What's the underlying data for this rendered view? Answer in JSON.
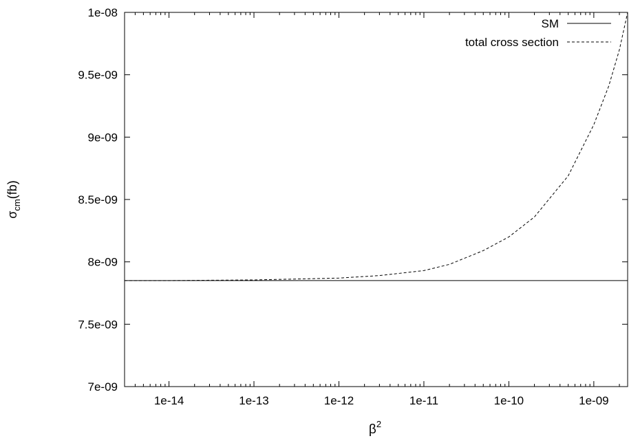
{
  "chart_data": {
    "type": "line",
    "title": "",
    "xlabel": "β",
    "xlabel_sup": "2",
    "ylabel": "σ",
    "ylabel_sub": "cm",
    "ylabel_unit": "(fb)",
    "x_scale": "log",
    "xlim": [
      3e-15,
      2.5e-09
    ],
    "ylim": [
      7e-09,
      1e-08
    ],
    "grid": false,
    "legend_position": "top-right",
    "x_ticks": [
      {
        "value": 1e-14,
        "label": "1e-14"
      },
      {
        "value": 1e-13,
        "label": "1e-13"
      },
      {
        "value": 1e-12,
        "label": "1e-12"
      },
      {
        "value": 1e-11,
        "label": "1e-11"
      },
      {
        "value": 1e-10,
        "label": "1e-10"
      },
      {
        "value": 1e-09,
        "label": "1e-09"
      }
    ],
    "y_ticks": [
      {
        "value": 7e-09,
        "label": "7e-09"
      },
      {
        "value": 7.5e-09,
        "label": "7.5e-09"
      },
      {
        "value": 8e-09,
        "label": "8e-09"
      },
      {
        "value": 8.5e-09,
        "label": "8.5e-09"
      },
      {
        "value": 9e-09,
        "label": "9e-09"
      },
      {
        "value": 9.5e-09,
        "label": "9.5e-09"
      },
      {
        "value": 1e-08,
        "label": "1e-08"
      }
    ],
    "series": [
      {
        "name": "SM",
        "style": "solid",
        "color": "#000000",
        "x": [
          3e-15,
          2.5e-09
        ],
        "y": [
          7.85e-09,
          7.85e-09
        ]
      },
      {
        "name": "total cross section",
        "style": "dashed",
        "color": "#000000",
        "x": [
          3e-15,
          1e-14,
          1e-13,
          1e-12,
          3e-12,
          1e-11,
          2e-11,
          5e-11,
          1e-10,
          2e-10,
          5e-10,
          1e-09,
          1.5e-09,
          2e-09,
          2.5e-09
        ],
        "y": [
          7.85e-09,
          7.85e-09,
          7.855e-09,
          7.87e-09,
          7.89e-09,
          7.93e-09,
          7.98e-09,
          8.09e-09,
          8.2e-09,
          8.36e-09,
          8.69e-09,
          9.1e-09,
          9.41e-09,
          9.7e-09,
          1e-08
        ]
      }
    ]
  }
}
